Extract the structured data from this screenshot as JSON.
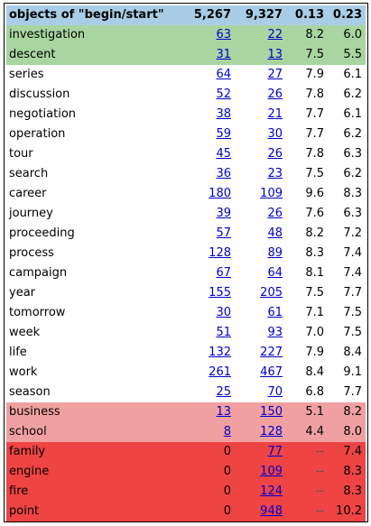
{
  "header": {
    "title": "objects of \"begin/start\"",
    "total1": "5,267",
    "total2": "9,327",
    "ratio1": "0.13",
    "ratio2": "0.23"
  },
  "colors": {
    "header_bg": "#a9cde6",
    "green_bg": "#a8d5a0",
    "pink_bg": "#f0a0a0",
    "red_bg": "#ee4444",
    "link": "#0000cc"
  },
  "rows": [
    {
      "word": "investigation",
      "n1": "63",
      "n2": "22",
      "r1": "8.2",
      "r2": "6.0",
      "hl": "g",
      "n1link": true
    },
    {
      "word": "descent",
      "n1": "31",
      "n2": "13",
      "r1": "7.5",
      "r2": "5.5",
      "hl": "g",
      "n1link": true
    },
    {
      "word": "series",
      "n1": "64",
      "n2": "27",
      "r1": "7.9",
      "r2": "6.1",
      "hl": "",
      "n1link": true
    },
    {
      "word": "discussion",
      "n1": "52",
      "n2": "26",
      "r1": "7.8",
      "r2": "6.2",
      "hl": "",
      "n1link": true
    },
    {
      "word": "negotiation",
      "n1": "38",
      "n2": "21",
      "r1": "7.7",
      "r2": "6.1",
      "hl": "",
      "n1link": true
    },
    {
      "word": "operation",
      "n1": "59",
      "n2": "30",
      "r1": "7.7",
      "r2": "6.2",
      "hl": "",
      "n1link": true
    },
    {
      "word": "tour",
      "n1": "45",
      "n2": "26",
      "r1": "7.8",
      "r2": "6.3",
      "hl": "",
      "n1link": true
    },
    {
      "word": "search",
      "n1": "36",
      "n2": "23",
      "r1": "7.5",
      "r2": "6.2",
      "hl": "",
      "n1link": true
    },
    {
      "word": "career",
      "n1": "180",
      "n2": "109",
      "r1": "9.6",
      "r2": "8.3",
      "hl": "",
      "n1link": true
    },
    {
      "word": "journey",
      "n1": "39",
      "n2": "26",
      "r1": "7.6",
      "r2": "6.3",
      "hl": "",
      "n1link": true
    },
    {
      "word": "proceeding",
      "n1": "57",
      "n2": "48",
      "r1": "8.2",
      "r2": "7.2",
      "hl": "",
      "n1link": true
    },
    {
      "word": "process",
      "n1": "128",
      "n2": "89",
      "r1": "8.3",
      "r2": "7.4",
      "hl": "",
      "n1link": true
    },
    {
      "word": "campaign",
      "n1": "67",
      "n2": "64",
      "r1": "8.1",
      "r2": "7.4",
      "hl": "",
      "n1link": true
    },
    {
      "word": "year",
      "n1": "155",
      "n2": "205",
      "r1": "7.5",
      "r2": "7.7",
      "hl": "",
      "n1link": true
    },
    {
      "word": "tomorrow",
      "n1": "30",
      "n2": "61",
      "r1": "7.1",
      "r2": "7.5",
      "hl": "",
      "n1link": true
    },
    {
      "word": "week",
      "n1": "51",
      "n2": "93",
      "r1": "7.0",
      "r2": "7.5",
      "hl": "",
      "n1link": true
    },
    {
      "word": "life",
      "n1": "132",
      "n2": "227",
      "r1": "7.9",
      "r2": "8.4",
      "hl": "",
      "n1link": true
    },
    {
      "word": "work",
      "n1": "261",
      "n2": "467",
      "r1": "8.4",
      "r2": "9.1",
      "hl": "",
      "n1link": true
    },
    {
      "word": "season",
      "n1": "25",
      "n2": "70",
      "r1": "6.8",
      "r2": "7.7",
      "hl": "",
      "n1link": true
    },
    {
      "word": "business",
      "n1": "13",
      "n2": "150",
      "r1": "5.1",
      "r2": "8.2",
      "hl": "p",
      "n1link": true
    },
    {
      "word": "school",
      "n1": "8",
      "n2": "128",
      "r1": "4.4",
      "r2": "8.0",
      "hl": "p",
      "n1link": true
    },
    {
      "word": "family",
      "n1": "0",
      "n2": "77",
      "r1": "--",
      "r2": "7.4",
      "hl": "r",
      "n1link": false
    },
    {
      "word": "engine",
      "n1": "0",
      "n2": "109",
      "r1": "--",
      "r2": "8.3",
      "hl": "r",
      "n1link": false
    },
    {
      "word": "fire",
      "n1": "0",
      "n2": "124",
      "r1": "--",
      "r2": "8.3",
      "hl": "r",
      "n1link": false
    },
    {
      "word": "point",
      "n1": "0",
      "n2": "948",
      "r1": "--",
      "r2": "10.2",
      "hl": "r",
      "n1link": false
    }
  ]
}
